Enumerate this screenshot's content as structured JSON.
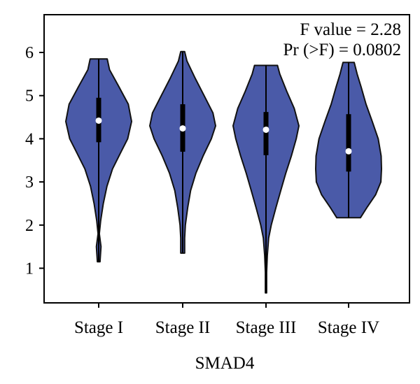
{
  "chart_data": {
    "type": "violin",
    "title": "",
    "xlabel": "SMAD4",
    "ylabel": "",
    "ylim": [
      0.2,
      6.8
    ],
    "yticks": [
      1,
      2,
      3,
      4,
      5,
      6
    ],
    "grid": false,
    "annotations": [
      "F value = 2.28",
      "Pr (>F) = 0.0802"
    ],
    "fill_color": "#4a5aa8",
    "categories": [
      "Stage I",
      "Stage II",
      "Stage III",
      "Stage IV"
    ],
    "series": [
      {
        "category": "Stage I",
        "min": 1.15,
        "max": 5.85,
        "q1": 3.92,
        "q3": 4.95,
        "median": 4.42,
        "profile": [
          [
            1.15,
            0.04
          ],
          [
            1.5,
            0.07
          ],
          [
            1.8,
            0.02
          ],
          [
            2.1,
            0.06
          ],
          [
            2.5,
            0.14
          ],
          [
            2.9,
            0.25
          ],
          [
            3.3,
            0.42
          ],
          [
            3.7,
            0.68
          ],
          [
            4.0,
            0.88
          ],
          [
            4.4,
            1.0
          ],
          [
            4.8,
            0.9
          ],
          [
            5.2,
            0.62
          ],
          [
            5.6,
            0.33
          ],
          [
            5.85,
            0.26
          ]
        ]
      },
      {
        "category": "Stage II",
        "min": 1.35,
        "max": 6.02,
        "q1": 3.7,
        "q3": 4.8,
        "median": 4.24,
        "profile": [
          [
            1.35,
            0.06
          ],
          [
            1.7,
            0.06
          ],
          [
            2.0,
            0.08
          ],
          [
            2.4,
            0.15
          ],
          [
            2.8,
            0.24
          ],
          [
            3.2,
            0.4
          ],
          [
            3.6,
            0.62
          ],
          [
            4.0,
            0.87
          ],
          [
            4.3,
            1.0
          ],
          [
            4.6,
            0.92
          ],
          [
            5.0,
            0.65
          ],
          [
            5.4,
            0.38
          ],
          [
            5.8,
            0.13
          ],
          [
            6.02,
            0.06
          ]
        ]
      },
      {
        "category": "Stage III",
        "min": 0.43,
        "max": 5.7,
        "q1": 3.62,
        "q3": 4.62,
        "median": 4.21,
        "profile": [
          [
            0.43,
            0.02
          ],
          [
            0.9,
            0.02
          ],
          [
            1.3,
            0.04
          ],
          [
            1.7,
            0.08
          ],
          [
            2.0,
            0.16
          ],
          [
            2.4,
            0.3
          ],
          [
            2.8,
            0.45
          ],
          [
            3.2,
            0.6
          ],
          [
            3.6,
            0.77
          ],
          [
            4.0,
            0.92
          ],
          [
            4.3,
            1.0
          ],
          [
            4.7,
            0.86
          ],
          [
            5.1,
            0.63
          ],
          [
            5.5,
            0.42
          ],
          [
            5.7,
            0.35
          ]
        ]
      },
      {
        "category": "Stage IV",
        "min": 2.17,
        "max": 5.77,
        "q1": 3.24,
        "q3": 4.57,
        "median": 3.71,
        "profile": [
          [
            2.17,
            0.36
          ],
          [
            2.4,
            0.55
          ],
          [
            2.7,
            0.82
          ],
          [
            3.0,
            0.98
          ],
          [
            3.3,
            1.0
          ],
          [
            3.6,
            0.99
          ],
          [
            4.0,
            0.9
          ],
          [
            4.4,
            0.72
          ],
          [
            4.8,
            0.53
          ],
          [
            5.2,
            0.38
          ],
          [
            5.5,
            0.26
          ],
          [
            5.77,
            0.17
          ]
        ]
      }
    ]
  }
}
